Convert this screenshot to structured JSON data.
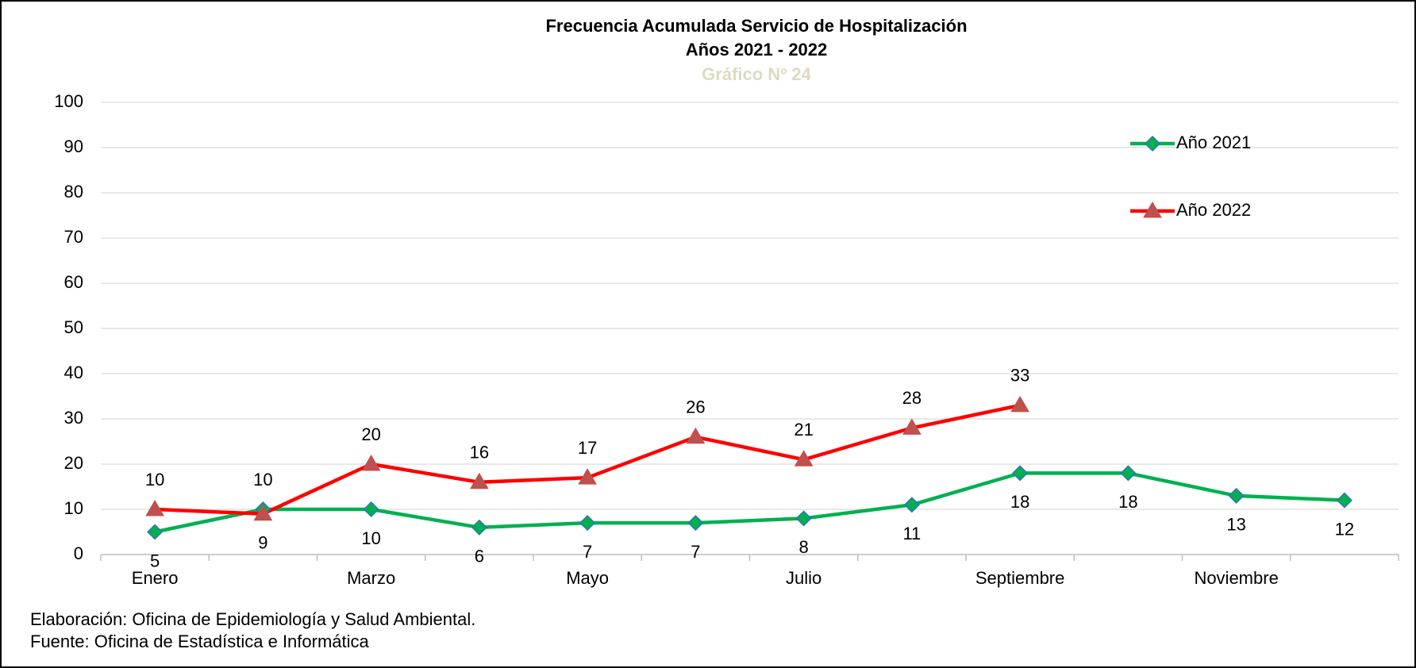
{
  "chart_data": {
    "type": "line",
    "title": "Frecuencia Acumulada Servicio de Hospitalización",
    "subtitle": "Años 2021 - 2022",
    "chart_number": "Gráfico Nº 24",
    "categories": [
      "Enero",
      null,
      "Marzo",
      null,
      "Mayo",
      null,
      "Julio",
      null,
      "Septiembre",
      null,
      "Noviembre",
      null
    ],
    "series": [
      {
        "name": "Año 2021",
        "color": "#00b050",
        "marker": "diamond",
        "marker_color": "#00b050",
        "marker_edge": "#2e75b6",
        "values": [
          5,
          10,
          10,
          6,
          7,
          7,
          8,
          11,
          18,
          18,
          13,
          12
        ]
      },
      {
        "name": "Año 2022",
        "color": "#ff0000",
        "marker": "triangle",
        "marker_color": "#c0504d",
        "marker_edge": "#c0504d",
        "values": [
          10,
          9,
          20,
          16,
          17,
          26,
          21,
          28,
          33,
          null,
          null,
          null
        ]
      }
    ],
    "ylim": [
      0,
      100
    ],
    "yticks": [
      0,
      10,
      20,
      30,
      40,
      50,
      60,
      70,
      80,
      90,
      100
    ],
    "grid": true,
    "legend": "upper right",
    "notes": [
      "Elaboración: Oficina de Epidemiología y Salud Ambiental.",
      "Fuente:  Oficina de Estadística e Informática"
    ]
  }
}
